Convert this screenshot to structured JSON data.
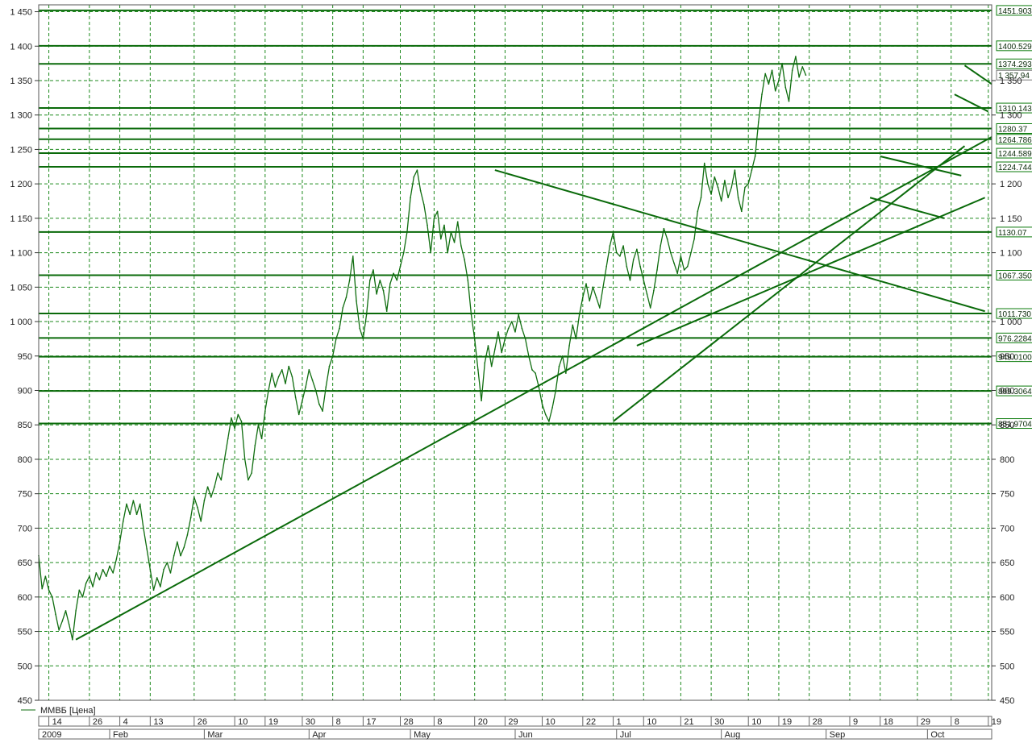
{
  "legend": {
    "series_label": "ММВБ [Цена]"
  },
  "colors": {
    "price": "#0f6d0f",
    "grid": "#1e8a1e",
    "lines": "#0a6a0a",
    "level_box": "#0a7a0a",
    "text": "#1e1e1e"
  },
  "chart_data": {
    "type": "line",
    "title": "",
    "xlabel": "",
    "ylabel": "",
    "ylim": [
      450,
      1460
    ],
    "grid": true,
    "legend_position": "bottom-left",
    "y_ticks_left": [
      "1 450",
      "1 400",
      "1 350",
      "1 300",
      "1 250",
      "1 200",
      "1 150",
      "1 100",
      "1 050",
      "1 000",
      "950",
      "900",
      "850",
      "800",
      "750",
      "700",
      "650",
      "600",
      "550",
      "500",
      "450"
    ],
    "y_ticks_right": [
      "1 350",
      "1 300",
      "1 200",
      "1 150",
      "1 100",
      "1 000",
      "950",
      "900",
      "850",
      "800",
      "750",
      "700",
      "650",
      "600",
      "550",
      "500",
      "450"
    ],
    "date_labels": [
      {
        "label": "14",
        "day": 0
      },
      {
        "label": "26",
        "day": 12
      },
      {
        "label": "4",
        "day": 21
      },
      {
        "label": "13",
        "day": 30
      },
      {
        "label": "26",
        "day": 43
      },
      {
        "label": "10",
        "day": 55
      },
      {
        "label": "19",
        "day": 64
      },
      {
        "label": "30",
        "day": 75
      },
      {
        "label": "8",
        "day": 84
      },
      {
        "label": "17",
        "day": 93
      },
      {
        "label": "28",
        "day": 104
      },
      {
        "label": "8",
        "day": 114
      },
      {
        "label": "20",
        "day": 126
      },
      {
        "label": "29",
        "day": 135
      },
      {
        "label": "10",
        "day": 146
      },
      {
        "label": "22",
        "day": 158
      },
      {
        "label": "1",
        "day": 167
      },
      {
        "label": "10",
        "day": 176
      },
      {
        "label": "21",
        "day": 187
      },
      {
        "label": "30",
        "day": 196
      },
      {
        "label": "10",
        "day": 207
      },
      {
        "label": "19",
        "day": 216
      },
      {
        "label": "28",
        "day": 225
      },
      {
        "label": "9",
        "day": 237
      },
      {
        "label": "18",
        "day": 246
      },
      {
        "label": "29",
        "day": 257
      },
      {
        "label": "8",
        "day": 267
      },
      {
        "label": "19",
        "day": 278
      }
    ],
    "month_labels": [
      {
        "label": "2009",
        "day": -3
      },
      {
        "label": "Feb",
        "day": 18
      },
      {
        "label": "Mar",
        "day": 46
      },
      {
        "label": "Apr",
        "day": 77
      },
      {
        "label": "May",
        "day": 107
      },
      {
        "label": "Jun",
        "day": 138
      },
      {
        "label": "Jul",
        "day": 168
      },
      {
        "label": "Aug",
        "day": 199
      },
      {
        "label": "Sep",
        "day": 230
      },
      {
        "label": "Oct",
        "day": 260
      }
    ],
    "x_range_days": [
      -3,
      279
    ],
    "support_levels": [
      {
        "label": "1451.903",
        "value": 1451.9
      },
      {
        "label": "1400.529",
        "value": 1400.53
      },
      {
        "label": "1374.293",
        "value": 1374.29
      },
      {
        "label": "1310.143",
        "value": 1310.14
      },
      {
        "label": "1280.37",
        "value": 1280.37
      },
      {
        "label": "1264.786",
        "value": 1264.79
      },
      {
        "label": "1244.589",
        "value": 1244.59
      },
      {
        "label": "1224.744",
        "value": 1224.74
      },
      {
        "label": "1130.07",
        "value": 1130.07
      },
      {
        "label": "1067.350",
        "value": 1067.35
      },
      {
        "label": "1011.730",
        "value": 1011.73
      },
      {
        "label": "976.2284",
        "value": 976.23
      },
      {
        "label": "949.0100",
        "value": 949.01
      },
      {
        "label": "899.3064",
        "value": 899.31
      },
      {
        "label": "851.9704",
        "value": 851.97
      }
    ],
    "last_value_label": "1 357.94",
    "last_value": 1357.94,
    "price_series": {
      "name": "ММВБ [Цена]",
      "points": [
        [
          -3,
          660
        ],
        [
          -2,
          612
        ],
        [
          -1,
          630
        ],
        [
          0,
          610
        ],
        [
          1,
          600
        ],
        [
          2,
          575
        ],
        [
          3,
          552
        ],
        [
          4,
          565
        ],
        [
          5,
          580
        ],
        [
          6,
          560
        ],
        [
          7,
          538
        ],
        [
          8,
          580
        ],
        [
          9,
          610
        ],
        [
          10,
          600
        ],
        [
          11,
          620
        ],
        [
          12,
          630
        ],
        [
          13,
          615
        ],
        [
          14,
          635
        ],
        [
          15,
          625
        ],
        [
          16,
          640
        ],
        [
          17,
          630
        ],
        [
          18,
          645
        ],
        [
          19,
          635
        ],
        [
          20,
          655
        ],
        [
          21,
          680
        ],
        [
          22,
          710
        ],
        [
          23,
          735
        ],
        [
          24,
          720
        ],
        [
          25,
          740
        ],
        [
          26,
          720
        ],
        [
          27,
          735
        ],
        [
          28,
          700
        ],
        [
          29,
          670
        ],
        [
          30,
          640
        ],
        [
          31,
          610
        ],
        [
          32,
          628
        ],
        [
          33,
          615
        ],
        [
          34,
          640
        ],
        [
          35,
          650
        ],
        [
          36,
          635
        ],
        [
          37,
          660
        ],
        [
          38,
          680
        ],
        [
          39,
          660
        ],
        [
          40,
          672
        ],
        [
          41,
          690
        ],
        [
          42,
          715
        ],
        [
          43,
          745
        ],
        [
          44,
          730
        ],
        [
          45,
          710
        ],
        [
          46,
          740
        ],
        [
          47,
          760
        ],
        [
          48,
          745
        ],
        [
          49,
          760
        ],
        [
          50,
          780
        ],
        [
          51,
          770
        ],
        [
          52,
          800
        ],
        [
          53,
          830
        ],
        [
          54,
          860
        ],
        [
          55,
          845
        ],
        [
          56,
          865
        ],
        [
          57,
          855
        ],
        [
          58,
          800
        ],
        [
          59,
          770
        ],
        [
          60,
          780
        ],
        [
          61,
          820
        ],
        [
          62,
          850
        ],
        [
          63,
          830
        ],
        [
          64,
          870
        ],
        [
          65,
          900
        ],
        [
          66,
          925
        ],
        [
          67,
          905
        ],
        [
          68,
          920
        ],
        [
          69,
          930
        ],
        [
          70,
          910
        ],
        [
          71,
          935
        ],
        [
          72,
          920
        ],
        [
          73,
          890
        ],
        [
          74,
          865
        ],
        [
          75,
          885
        ],
        [
          76,
          905
        ],
        [
          77,
          930
        ],
        [
          78,
          915
        ],
        [
          79,
          900
        ],
        [
          80,
          880
        ],
        [
          81,
          870
        ],
        [
          82,
          905
        ],
        [
          83,
          935
        ],
        [
          84,
          950
        ],
        [
          85,
          975
        ],
        [
          86,
          990
        ],
        [
          87,
          1020
        ],
        [
          88,
          1035
        ],
        [
          89,
          1060
        ],
        [
          90,
          1095
        ],
        [
          91,
          1030
        ],
        [
          92,
          990
        ],
        [
          93,
          975
        ],
        [
          94,
          1010
        ],
        [
          95,
          1060
        ],
        [
          96,
          1075
        ],
        [
          97,
          1040
        ],
        [
          98,
          1060
        ],
        [
          99,
          1045
        ],
        [
          100,
          1015
        ],
        [
          101,
          1055
        ],
        [
          102,
          1070
        ],
        [
          103,
          1060
        ],
        [
          104,
          1080
        ],
        [
          105,
          1100
        ],
        [
          106,
          1130
        ],
        [
          107,
          1180
        ],
        [
          108,
          1210
        ],
        [
          109,
          1220
        ],
        [
          110,
          1190
        ],
        [
          111,
          1170
        ],
        [
          112,
          1140
        ],
        [
          113,
          1100
        ],
        [
          114,
          1150
        ],
        [
          115,
          1160
        ],
        [
          116,
          1120
        ],
        [
          117,
          1140
        ],
        [
          118,
          1100
        ],
        [
          119,
          1130
        ],
        [
          120,
          1115
        ],
        [
          121,
          1145
        ],
        [
          122,
          1110
        ],
        [
          123,
          1090
        ],
        [
          124,
          1060
        ],
        [
          125,
          1010
        ],
        [
          126,
          975
        ],
        [
          127,
          930
        ],
        [
          128,
          885
        ],
        [
          129,
          940
        ],
        [
          130,
          965
        ],
        [
          131,
          935
        ],
        [
          132,
          960
        ],
        [
          133,
          985
        ],
        [
          134,
          955
        ],
        [
          135,
          975
        ],
        [
          136,
          990
        ],
        [
          137,
          1000
        ],
        [
          138,
          985
        ],
        [
          139,
          1010
        ],
        [
          140,
          990
        ],
        [
          141,
          975
        ],
        [
          142,
          950
        ],
        [
          143,
          930
        ],
        [
          144,
          925
        ],
        [
          145,
          905
        ],
        [
          146,
          880
        ],
        [
          147,
          865
        ],
        [
          148,
          855
        ],
        [
          149,
          875
        ],
        [
          150,
          900
        ],
        [
          151,
          935
        ],
        [
          152,
          950
        ],
        [
          153,
          925
        ],
        [
          154,
          965
        ],
        [
          155,
          995
        ],
        [
          156,
          975
        ],
        [
          157,
          1010
        ],
        [
          158,
          1035
        ],
        [
          159,
          1055
        ],
        [
          160,
          1030
        ],
        [
          161,
          1050
        ],
        [
          162,
          1035
        ],
        [
          163,
          1020
        ],
        [
          164,
          1050
        ],
        [
          165,
          1080
        ],
        [
          166,
          1110
        ],
        [
          167,
          1130
        ],
        [
          168,
          1100
        ],
        [
          169,
          1095
        ],
        [
          170,
          1110
        ],
        [
          171,
          1080
        ],
        [
          172,
          1060
        ],
        [
          173,
          1090
        ],
        [
          174,
          1105
        ],
        [
          175,
          1080
        ],
        [
          176,
          1060
        ],
        [
          177,
          1040
        ],
        [
          178,
          1020
        ],
        [
          179,
          1045
        ],
        [
          180,
          1075
        ],
        [
          181,
          1110
        ],
        [
          182,
          1135
        ],
        [
          183,
          1120
        ],
        [
          184,
          1100
        ],
        [
          185,
          1085
        ],
        [
          186,
          1070
        ],
        [
          187,
          1095
        ],
        [
          188,
          1075
        ],
        [
          189,
          1080
        ],
        [
          190,
          1100
        ],
        [
          191,
          1120
        ],
        [
          192,
          1160
        ],
        [
          193,
          1180
        ],
        [
          194,
          1230
        ],
        [
          195,
          1200
        ],
        [
          196,
          1185
        ],
        [
          197,
          1210
        ],
        [
          198,
          1195
        ],
        [
          199,
          1175
        ],
        [
          200,
          1205
        ],
        [
          201,
          1180
        ],
        [
          202,
          1195
        ],
        [
          203,
          1220
        ],
        [
          204,
          1180
        ],
        [
          205,
          1160
        ],
        [
          206,
          1195
        ],
        [
          207,
          1200
        ],
        [
          208,
          1220
        ],
        [
          209,
          1240
        ],
        [
          210,
          1290
        ],
        [
          211,
          1330
        ],
        [
          212,
          1360
        ],
        [
          213,
          1345
        ],
        [
          214,
          1365
        ],
        [
          215,
          1335
        ],
        [
          216,
          1350
        ],
        [
          217,
          1375
        ],
        [
          218,
          1340
        ],
        [
          219,
          1320
        ],
        [
          220,
          1365
        ],
        [
          221,
          1385
        ],
        [
          222,
          1355
        ],
        [
          223,
          1370
        ],
        [
          224,
          1358
        ]
      ]
    },
    "trend_lines": [
      {
        "from": [
          8,
          538
        ],
        "to": [
          279,
          1268
        ]
      },
      {
        "from": [
          132,
          1220
        ],
        "to": [
          277,
          1015
        ]
      },
      {
        "from": [
          167,
          855
        ],
        "to": [
          271,
          1255
        ]
      },
      {
        "from": [
          174,
          965
        ],
        "to": [
          277,
          1180
        ]
      },
      {
        "from": [
          246,
          1240
        ],
        "to": [
          270,
          1212
        ]
      },
      {
        "from": [
          243,
          1180
        ],
        "to": [
          265,
          1150
        ]
      },
      {
        "from": [
          271,
          1372
        ],
        "to": [
          279,
          1345
        ]
      },
      {
        "from": [
          268,
          1330
        ],
        "to": [
          278,
          1305
        ]
      }
    ]
  }
}
